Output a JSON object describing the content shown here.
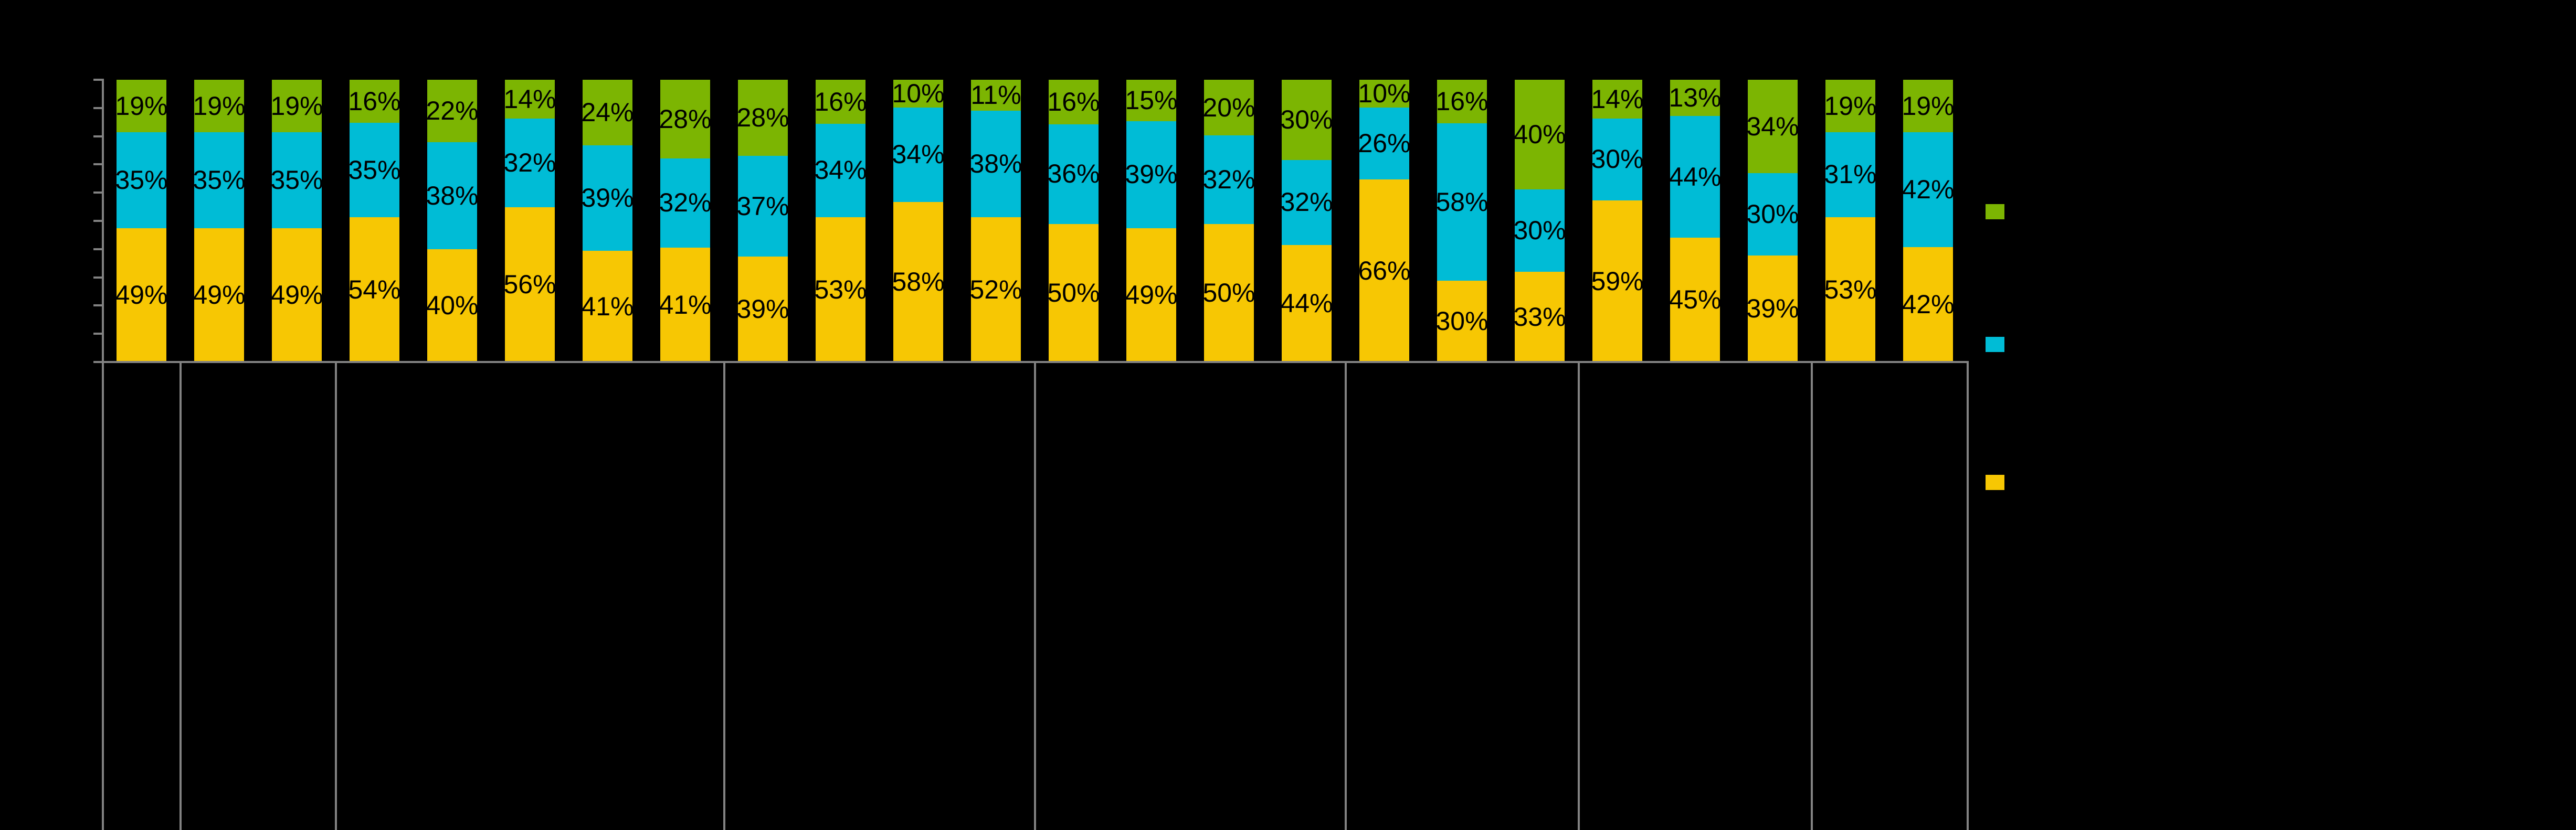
{
  "chart_data": {
    "type": "bar",
    "subtype": "stacked-100-percent",
    "background_color": "#000000",
    "axis_color": "#828282",
    "label_color": "#000000",
    "label_format": "{value}%",
    "categories_visible": false,
    "axis_tick_labels_visible": false,
    "bar_count": 24,
    "group_sizes": [
      1,
      2,
      5,
      4,
      4,
      3,
      3,
      2
    ],
    "ylim": [
      0,
      100
    ],
    "y_tick_interval": 10,
    "y_tick_count": 11,
    "grid": false,
    "legend_position": "right",
    "series": [
      {
        "name": "yellow-series",
        "color": "#F7C703",
        "values": [
          49,
          49,
          49,
          54,
          40,
          56,
          41,
          41,
          39,
          53,
          58,
          52,
          50,
          49,
          50,
          44,
          66,
          30,
          33,
          59,
          45,
          39,
          53,
          42
        ]
      },
      {
        "name": "cyan-series",
        "color": "#00BCD6",
        "values": [
          35,
          35,
          35,
          35,
          38,
          32,
          39,
          32,
          37,
          34,
          34,
          38,
          36,
          39,
          32,
          32,
          26,
          58,
          30,
          30,
          44,
          30,
          31,
          42
        ]
      },
      {
        "name": "green-series",
        "color": "#7CB502",
        "values": [
          19,
          19,
          19,
          16,
          22,
          14,
          24,
          28,
          28,
          16,
          10,
          11,
          16,
          15,
          20,
          30,
          10,
          16,
          40,
          14,
          13,
          34,
          19,
          19
        ]
      }
    ]
  },
  "legend": {
    "items": [
      {
        "name": "green-series",
        "color": "#7CB502"
      },
      {
        "name": "cyan-series",
        "color": "#00BCD6"
      },
      {
        "name": "yellow-series",
        "color": "#F7C703"
      }
    ]
  }
}
